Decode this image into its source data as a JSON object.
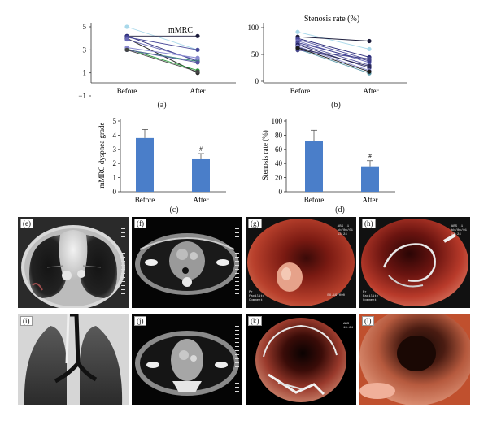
{
  "charts": {
    "a": {
      "panel_label": "(a)",
      "title": "mMRC",
      "yticks": [
        "5",
        "3",
        "1",
        "−1"
      ],
      "xticks": [
        "Before",
        "After"
      ]
    },
    "b": {
      "panel_label": "(b)",
      "title": "Stenosis rate (%)",
      "yticks": [
        "100",
        "50",
        "0"
      ],
      "xticks": [
        "Before",
        "After"
      ]
    },
    "c": {
      "panel_label": "(c)",
      "ylabel": "mMRC dyspnea grade",
      "yticks": [
        "5",
        "4",
        "3",
        "2",
        "1",
        "0"
      ],
      "xticks": [
        "Before",
        "After"
      ],
      "marker": "#"
    },
    "d": {
      "panel_label": "(d)",
      "ylabel": "Stenosis rate (%)",
      "yticks": [
        "100",
        "80",
        "60",
        "40",
        "20",
        "0"
      ],
      "xticks": [
        "Before",
        "After"
      ],
      "marker": "#"
    }
  },
  "chart_data": [
    {
      "type": "line",
      "panel": "a",
      "title": "mMRC",
      "x": [
        "Before",
        "After"
      ],
      "ylim": [
        -1,
        5
      ],
      "yticks": [
        -1,
        1,
        3,
        5
      ],
      "series": [
        {
          "values": [
            5,
            3
          ],
          "color": "#a8d8ea"
        },
        {
          "values": [
            4.2,
            4.2
          ],
          "color": "#1a1a3a"
        },
        {
          "values": [
            4.2,
            2.0
          ],
          "color": "#2b2b7a"
        },
        {
          "values": [
            4.0,
            1.0
          ],
          "color": "#222222"
        },
        {
          "values": [
            4.1,
            3.0
          ],
          "color": "#4a4a9a"
        },
        {
          "values": [
            3.9,
            2.1
          ],
          "color": "#6a6ab8"
        },
        {
          "values": [
            3.0,
            2.0
          ],
          "color": "#3d8a7a"
        },
        {
          "values": [
            3.1,
            1.2
          ],
          "color": "#2a9a3a"
        },
        {
          "values": [
            3.0,
            1.9
          ],
          "color": "#5555a0"
        },
        {
          "values": [
            3.2,
            2.3
          ],
          "color": "#8a8ad0"
        },
        {
          "values": [
            3.0,
            1.1
          ],
          "color": "#444444"
        }
      ]
    },
    {
      "type": "line",
      "panel": "b",
      "title": "Stenosis rate (%)",
      "x": [
        "Before",
        "After"
      ],
      "ylim": [
        0,
        100
      ],
      "yticks": [
        0,
        50,
        100
      ],
      "series": [
        {
          "values": [
            92,
            60
          ],
          "color": "#a8d8ea"
        },
        {
          "values": [
            83,
            75
          ],
          "color": "#1a1a3a"
        },
        {
          "values": [
            80,
            45
          ],
          "color": "#2b2b7a"
        },
        {
          "values": [
            78,
            40
          ],
          "color": "#4a4a9a"
        },
        {
          "values": [
            75,
            35
          ],
          "color": "#6a6ab8"
        },
        {
          "values": [
            72,
            38
          ],
          "color": "#3a3a8a"
        },
        {
          "values": [
            70,
            30
          ],
          "color": "#5555a0"
        },
        {
          "values": [
            68,
            25
          ],
          "color": "#222266"
        },
        {
          "values": [
            65,
            20
          ],
          "color": "#8a8ad0"
        },
        {
          "values": [
            63,
            28
          ],
          "color": "#2a2a55"
        },
        {
          "values": [
            60,
            15
          ],
          "color": "#5a9aaa"
        },
        {
          "values": [
            58,
            42
          ],
          "color": "#444488"
        },
        {
          "values": [
            62,
            18
          ],
          "color": "#1a1a1a"
        }
      ]
    },
    {
      "type": "bar",
      "panel": "c",
      "ylabel": "mMRC dyspnea grade",
      "categories": [
        "Before",
        "After"
      ],
      "values": [
        3.8,
        2.3
      ],
      "errors": [
        0.6,
        0.4
      ],
      "ylim": [
        0,
        5
      ],
      "annotations": [
        {
          "category": "After",
          "text": "#"
        }
      ],
      "bar_color": "#4a7ec9"
    },
    {
      "type": "bar",
      "panel": "d",
      "ylabel": "Stenosis rate (%)",
      "categories": [
        "Before",
        "After"
      ],
      "values": [
        72,
        36
      ],
      "errors": [
        15,
        8
      ],
      "ylim": [
        0,
        100
      ],
      "annotations": [
        {
          "category": "After",
          "text": "#"
        }
      ],
      "bar_color": "#4a7ec9"
    }
  ],
  "images": [
    {
      "label": "(e)",
      "kind": "ct-lung"
    },
    {
      "label": "(f)",
      "kind": "ct-mediastinal"
    },
    {
      "label": "(g)",
      "kind": "endoscopy-red",
      "overlay_left": "Pr\nFacility\nComment",
      "overlay_right": "EX-197000",
      "overlay_top": "ABS -1\nbb/0n/01\n13:24"
    },
    {
      "label": "(h)",
      "kind": "endoscopy-stent",
      "overlay_left": "Pr\nFacility\nComment",
      "overlay_top": "ABS -1\nbb/0n/01\n13:24"
    },
    {
      "label": "(i)",
      "kind": "ct-coronal"
    },
    {
      "label": "(j)",
      "kind": "ct-mediastinal-2"
    },
    {
      "label": "(k)",
      "kind": "endoscopy-stent-view",
      "overlay_top": "ABS\n13:24"
    },
    {
      "label": "(l)",
      "kind": "endoscopy-open"
    }
  ]
}
